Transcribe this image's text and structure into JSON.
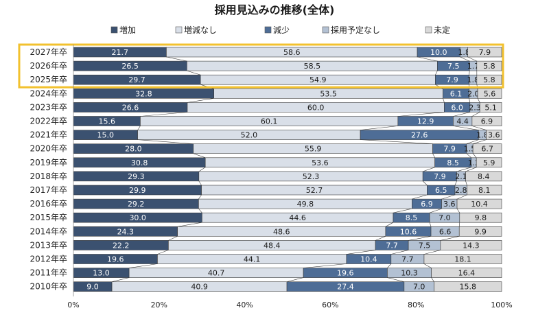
{
  "chart_data": {
    "type": "bar",
    "orientation": "horizontal",
    "stacked": "percent",
    "title": "採用見込みの推移(全体)",
    "categories": [
      "2027年卒",
      "2026年卒",
      "2025年卒",
      "2024年卒",
      "2023年卒",
      "2022年卒",
      "2021年卒",
      "2020年卒",
      "2019年卒",
      "2018年卒",
      "2017年卒",
      "2016年卒",
      "2015年卒",
      "2014年卒",
      "2013年卒",
      "2012年卒",
      "2011年卒",
      "2010年卒"
    ],
    "series": [
      {
        "name": "増加",
        "color": "#3b5170",
        "label_color": "#ffffff",
        "values": [
          21.7,
          26.5,
          29.7,
          32.8,
          26.6,
          15.6,
          15.0,
          28.0,
          30.8,
          29.3,
          29.9,
          29.2,
          30.0,
          24.3,
          22.2,
          19.6,
          13.0,
          9.0
        ]
      },
      {
        "name": "増減なし",
        "color": "#d9dfe8",
        "label_color": "#1a1a1a",
        "values": [
          58.6,
          58.5,
          54.9,
          53.5,
          60.0,
          60.1,
          52.0,
          55.9,
          53.6,
          52.3,
          52.7,
          49.8,
          44.6,
          48.6,
          48.4,
          44.1,
          40.7,
          40.9
        ]
      },
      {
        "name": "減少",
        "color": "#4e6d96",
        "label_color": "#ffffff",
        "values": [
          10.0,
          7.5,
          7.9,
          6.1,
          6.0,
          12.9,
          27.6,
          7.9,
          8.5,
          7.9,
          6.5,
          6.9,
          8.5,
          10.6,
          7.7,
          10.4,
          19.6,
          27.4
        ]
      },
      {
        "name": "採用予定なし",
        "color": "#b3c1d3",
        "label_color": "#1a1a1a",
        "values": [
          1.8,
          1.7,
          1.8,
          2.0,
          2.3,
          4.4,
          1.8,
          1.5,
          1.2,
          2.1,
          2.8,
          3.6,
          7.0,
          6.6,
          7.5,
          7.7,
          10.3,
          7.0
        ]
      },
      {
        "name": "未定",
        "color": "#d9d9d9",
        "label_color": "#1a1a1a",
        "values": [
          7.9,
          5.8,
          5.8,
          5.6,
          5.1,
          6.9,
          3.6,
          6.7,
          5.9,
          8.4,
          8.1,
          10.4,
          9.8,
          9.9,
          14.3,
          18.1,
          16.4,
          15.8
        ]
      }
    ],
    "xlim": [
      0,
      100
    ],
    "x_ticks": [
      "0%",
      "20%",
      "40%",
      "60%",
      "80%",
      "100%"
    ],
    "legend_position": "top",
    "highlight": {
      "categories": [
        "2027年卒",
        "2026年卒",
        "2025年卒"
      ],
      "color": "#f2c12e"
    }
  }
}
